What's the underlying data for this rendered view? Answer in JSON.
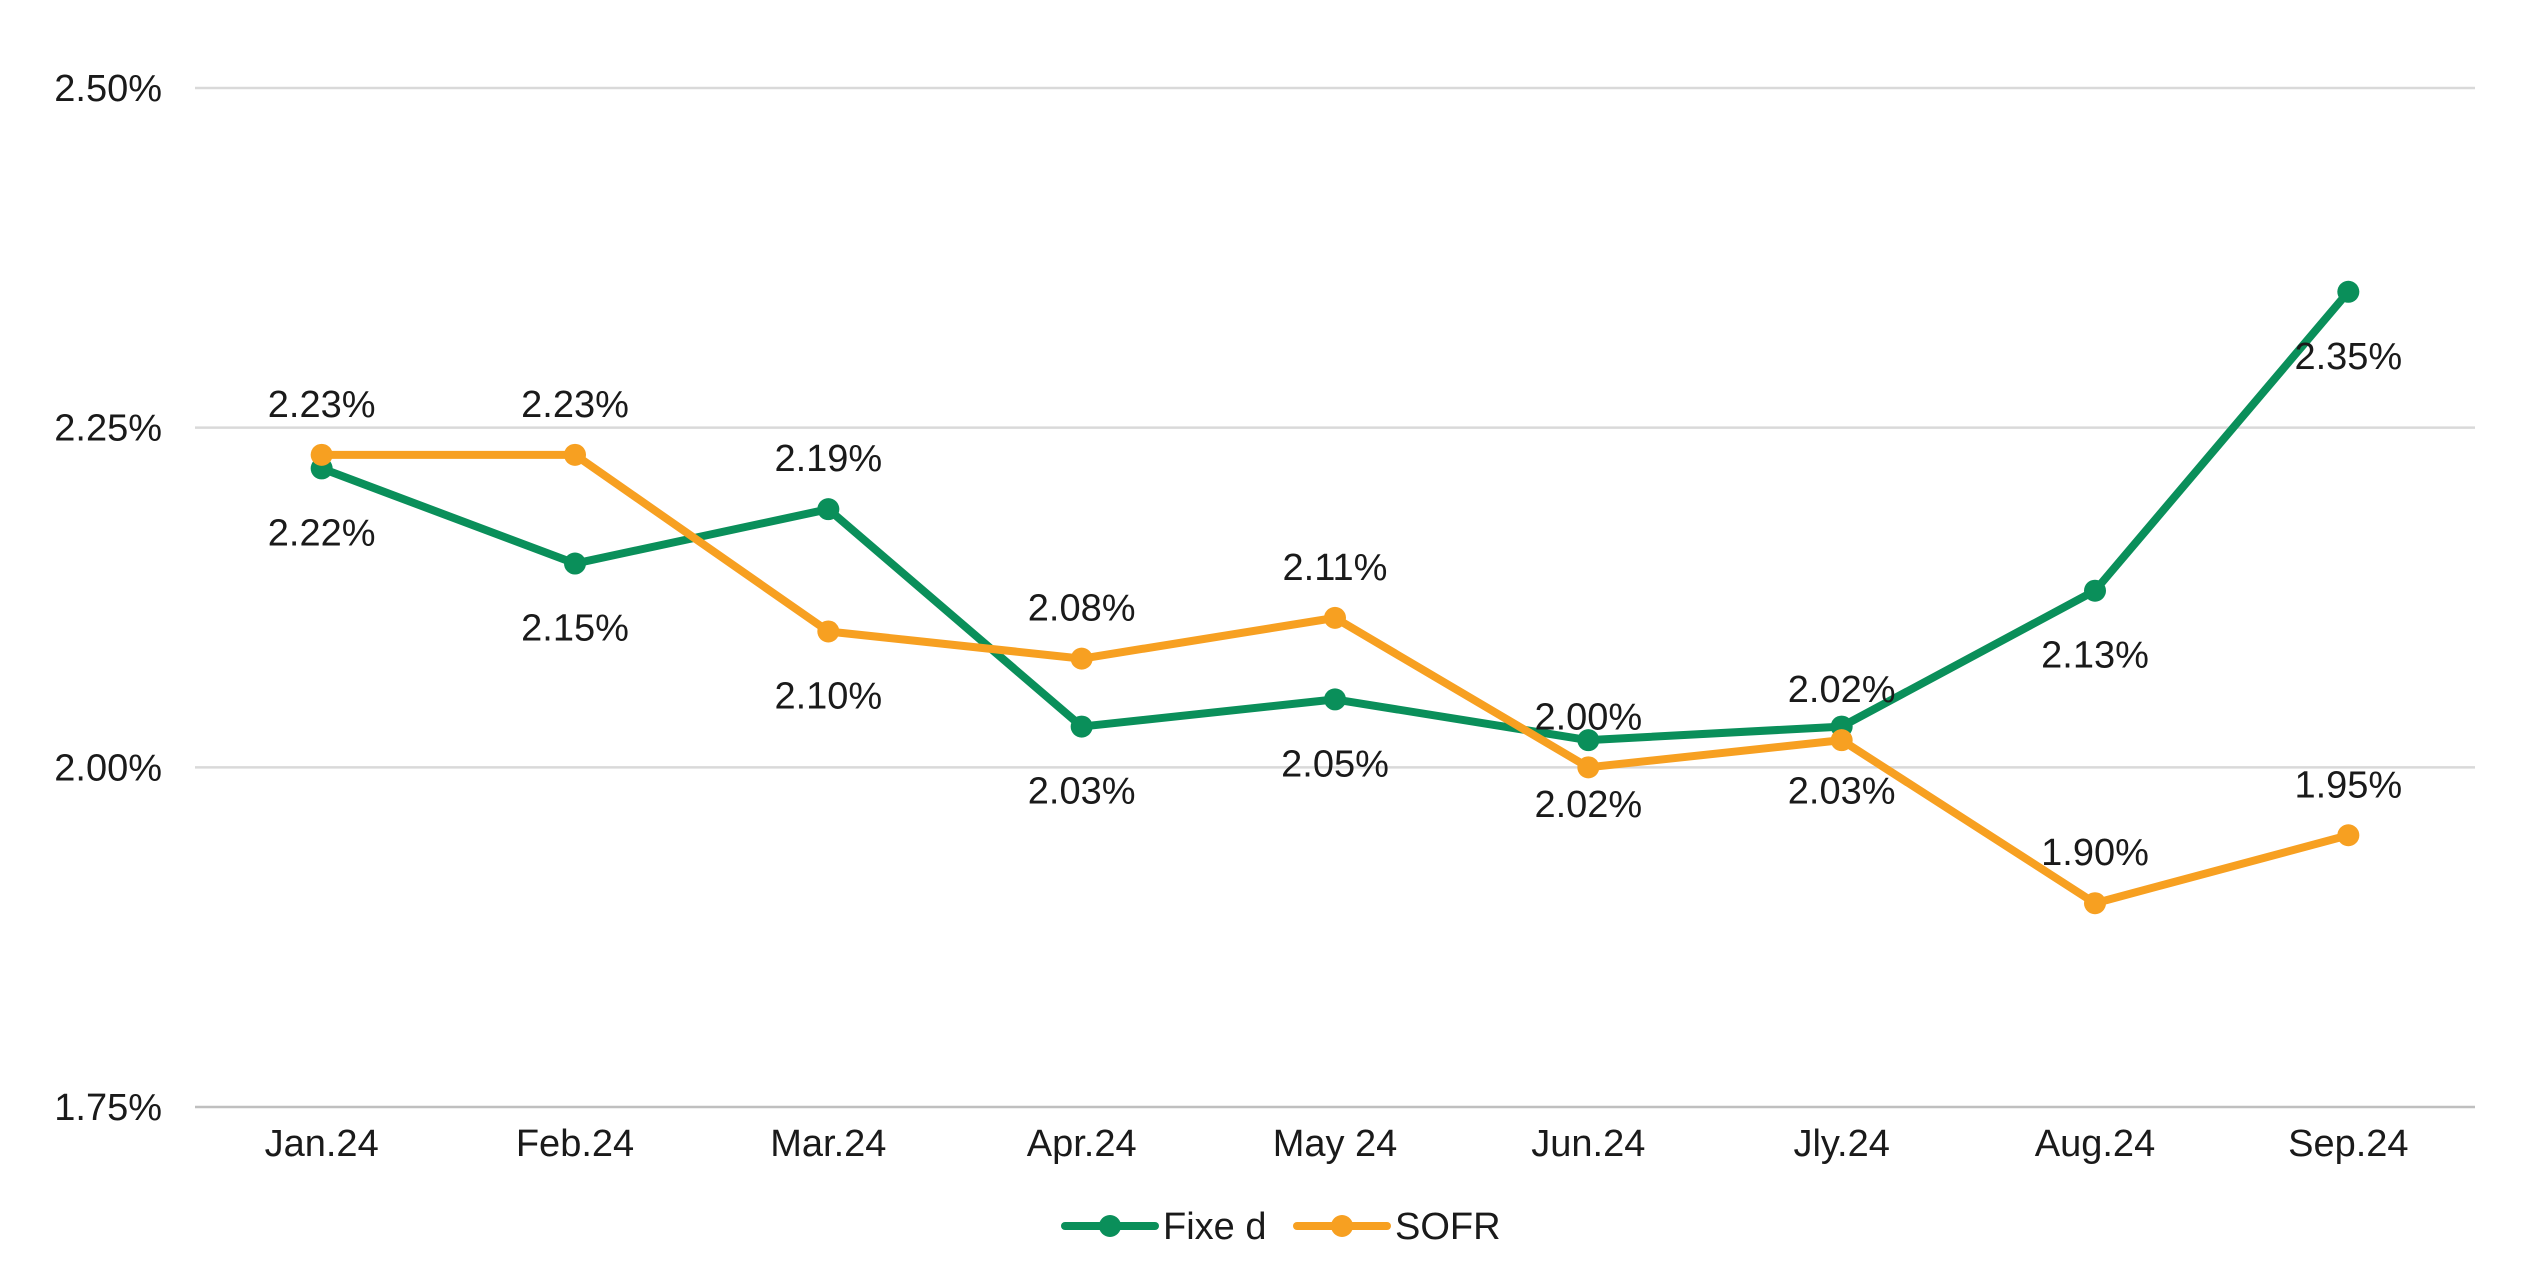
{
  "chart_data": {
    "type": "line",
    "title": "",
    "xlabel": "",
    "ylabel": "",
    "categories": [
      "Jan.24",
      "Feb.24",
      "Mar.24",
      "Apr.24",
      "May 24",
      "Jun.24",
      "Jly.24",
      "Aug.24",
      "Sep.24"
    ],
    "ylim": [
      1.75,
      2.5
    ],
    "yticks": [
      1.75,
      2.0,
      2.25,
      2.5
    ],
    "ytick_labels": [
      "1.75%",
      "2.00%",
      "2.25%",
      "2.50%"
    ],
    "grid": true,
    "legend_position": "bottom",
    "series": [
      {
        "name": "Fixe d",
        "color": "#0a8f5a",
        "values": [
          2.22,
          2.15,
          2.19,
          2.03,
          2.05,
          2.02,
          2.03,
          2.13,
          2.35
        ],
        "labels": [
          "2.22%",
          "2.15%",
          "2.19%",
          "2.03%",
          "2.05%",
          "2.02%",
          "2.03%",
          "2.13%",
          "2.35%"
        ],
        "label_side": [
          "below",
          "below",
          "above",
          "below",
          "below",
          "below",
          "below",
          "below",
          "below"
        ]
      },
      {
        "name": "SOFR",
        "color": "#f7a021",
        "values": [
          2.23,
          2.23,
          2.1,
          2.08,
          2.11,
          2.0,
          2.02,
          1.9,
          1.95
        ],
        "labels": [
          "2.23%",
          "2.23%",
          "2.10%",
          "2.08%",
          "2.11%",
          "2.00%",
          "2.02%",
          "1.90%",
          "1.95%"
        ],
        "label_side": [
          "above",
          "above",
          "below",
          "above",
          "above",
          "above",
          "above",
          "above",
          "above"
        ]
      }
    ]
  }
}
